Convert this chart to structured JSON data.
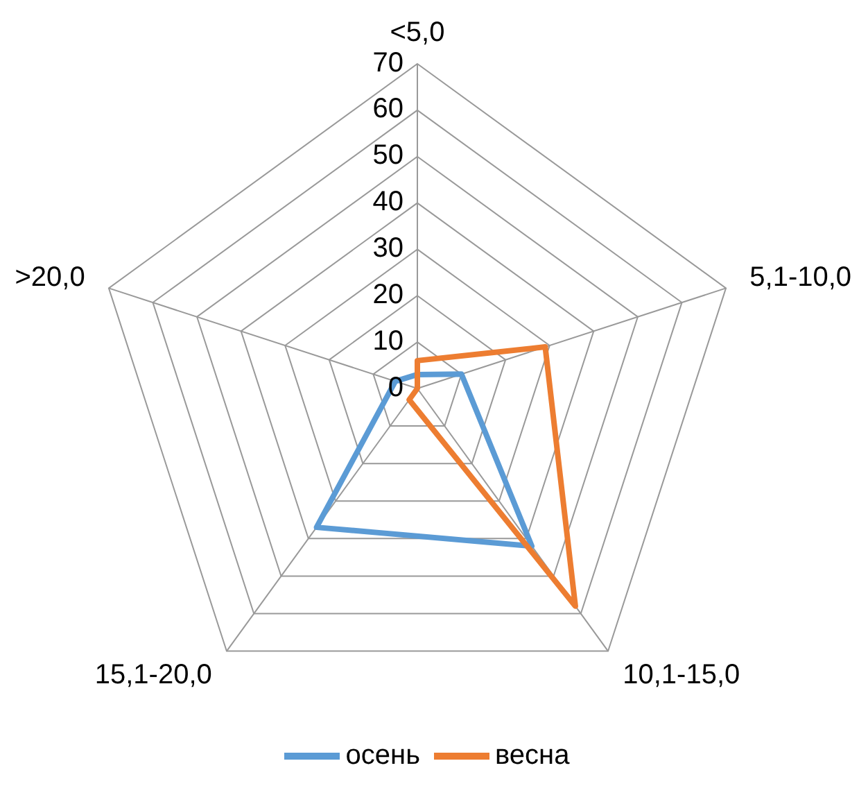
{
  "chart_data": {
    "type": "radar",
    "categories": [
      "<5,0",
      "5,1-10,0",
      "10,1-15,0",
      "15,1-20,0",
      ">20,0"
    ],
    "series": [
      {
        "name": "осень",
        "color": "#5b9bd5",
        "values": [
          3,
          10,
          42,
          37,
          5
        ]
      },
      {
        "name": "весна",
        "color": "#ed7d31",
        "values": [
          6,
          29,
          58,
          3,
          0
        ]
      }
    ],
    "ylim": [
      0,
      70
    ],
    "yticks": [
      0,
      10,
      20,
      30,
      40,
      50,
      60,
      70
    ],
    "grid": true,
    "legend": "bottom"
  }
}
